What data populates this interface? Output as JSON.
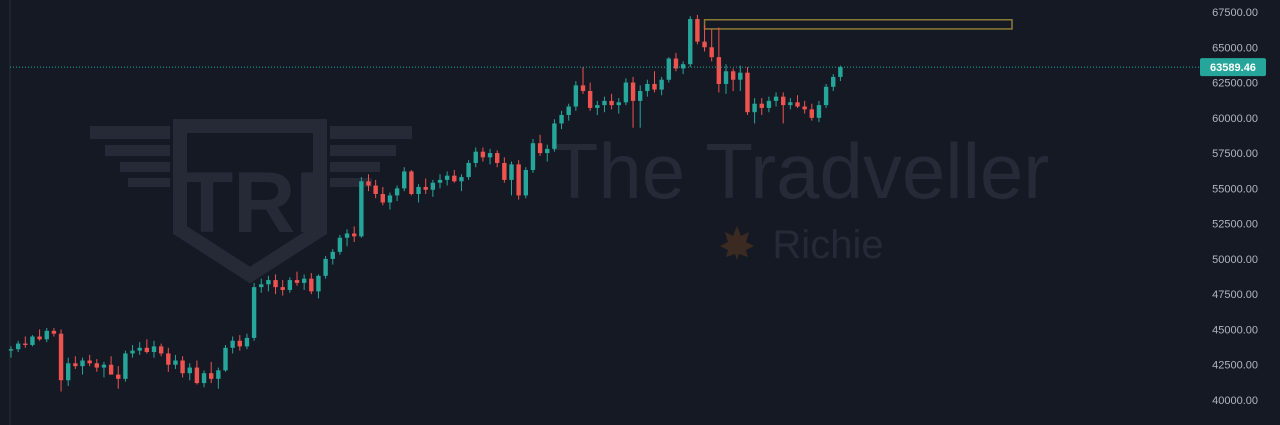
{
  "chart_data": {
    "type": "candlestick",
    "title": "",
    "xlabel": "",
    "ylabel": "",
    "ylim": [
      39000,
      68500
    ],
    "y_ticks": [
      "67500.00",
      "65000.00",
      "62500.00",
      "60000.00",
      "57500.00",
      "55000.00",
      "52500.00",
      "50000.00",
      "47500.00",
      "45000.00",
      "42500.00",
      "40000.00"
    ],
    "last_price": 63589.46,
    "last_price_label": "63589.46",
    "resistance_zone": {
      "low": 66300,
      "high": 66950,
      "from_index": 97,
      "to_index": 140
    },
    "colors": {
      "up": "#26a69a",
      "down": "#ef5350",
      "background": "#151924",
      "zone_border": "#8c7b36",
      "price_line": "#26a69a",
      "axis_text": "#b2b5be"
    },
    "candles": [
      [
        43500,
        43800,
        43000,
        43600
      ],
      [
        43600,
        44200,
        43400,
        44000
      ],
      [
        44000,
        44500,
        43700,
        43900
      ],
      [
        43900,
        44600,
        43800,
        44500
      ],
      [
        44500,
        45000,
        44200,
        44300
      ],
      [
        44300,
        45100,
        44100,
        44900
      ],
      [
        44900,
        45100,
        44500,
        44700
      ],
      [
        44700,
        45000,
        40600,
        41400
      ],
      [
        41400,
        43000,
        41000,
        42600
      ],
      [
        42600,
        43100,
        42200,
        42400
      ],
      [
        42400,
        43000,
        41800,
        42800
      ],
      [
        42800,
        43200,
        42400,
        42600
      ],
      [
        42600,
        42900,
        42000,
        42300
      ],
      [
        42300,
        42700,
        41600,
        42500
      ],
      [
        42500,
        43100,
        41900,
        41800
      ],
      [
        41800,
        42400,
        40800,
        41500
      ],
      [
        41500,
        43500,
        41300,
        43300
      ],
      [
        43300,
        43900,
        43000,
        43500
      ],
      [
        43500,
        44100,
        43200,
        43700
      ],
      [
        43700,
        44300,
        43300,
        43400
      ],
      [
        43400,
        44200,
        43000,
        43800
      ],
      [
        43800,
        44000,
        43100,
        43300
      ],
      [
        43300,
        43700,
        42000,
        42500
      ],
      [
        42500,
        43200,
        42200,
        42800
      ],
      [
        42800,
        43100,
        41600,
        41900
      ],
      [
        41900,
        42600,
        41400,
        42300
      ],
      [
        42300,
        42800,
        41100,
        41200
      ],
      [
        41200,
        42100,
        40900,
        41900
      ],
      [
        41900,
        42700,
        41200,
        41500
      ],
      [
        41500,
        42300,
        40800,
        42100
      ],
      [
        42100,
        43900,
        42000,
        43700
      ],
      [
        43700,
        44500,
        43300,
        44200
      ],
      [
        44200,
        44600,
        43500,
        43800
      ],
      [
        43800,
        44700,
        43600,
        44400
      ],
      [
        44400,
        48300,
        44200,
        48000
      ],
      [
        48000,
        48600,
        47600,
        48200
      ],
      [
        48200,
        48800,
        47700,
        48500
      ],
      [
        48500,
        48900,
        47500,
        48000
      ],
      [
        48000,
        48500,
        47400,
        47800
      ],
      [
        47800,
        48700,
        47600,
        48500
      ],
      [
        48500,
        49100,
        48100,
        48300
      ],
      [
        48300,
        48900,
        47800,
        48600
      ],
      [
        48600,
        49000,
        47500,
        47700
      ],
      [
        47700,
        48900,
        47200,
        48800
      ],
      [
        48800,
        50200,
        48600,
        50000
      ],
      [
        50000,
        50700,
        49600,
        50500
      ],
      [
        50500,
        51700,
        50300,
        51500
      ],
      [
        51500,
        52100,
        50900,
        51800
      ],
      [
        51800,
        52300,
        51200,
        51600
      ],
      [
        51600,
        55800,
        51500,
        55500
      ],
      [
        55500,
        56000,
        54800,
        55200
      ],
      [
        55200,
        55600,
        54300,
        54600
      ],
      [
        54600,
        55100,
        53800,
        54000
      ],
      [
        54000,
        54700,
        53500,
        54500
      ],
      [
        54500,
        55200,
        54100,
        55000
      ],
      [
        55000,
        56500,
        54800,
        56200
      ],
      [
        56200,
        56300,
        54500,
        54600
      ],
      [
        54600,
        55300,
        54000,
        55100
      ],
      [
        55100,
        55700,
        54600,
        54900
      ],
      [
        54900,
        55600,
        54400,
        55400
      ],
      [
        55400,
        56000,
        55000,
        55600
      ],
      [
        55600,
        56200,
        55200,
        55900
      ],
      [
        55900,
        56300,
        55400,
        55500
      ],
      [
        55500,
        56000,
        54800,
        55800
      ],
      [
        55800,
        57000,
        55600,
        56800
      ],
      [
        56800,
        57900,
        56500,
        57600
      ],
      [
        57600,
        57900,
        56900,
        57200
      ],
      [
        57200,
        57800,
        56700,
        57500
      ],
      [
        57500,
        57700,
        56500,
        56800
      ],
      [
        56800,
        57200,
        55400,
        55600
      ],
      [
        55600,
        56900,
        54500,
        56700
      ],
      [
        56700,
        57000,
        54200,
        54500
      ],
      [
        54500,
        56500,
        54300,
        56300
      ],
      [
        56300,
        58500,
        56100,
        58200
      ],
      [
        58200,
        58800,
        57300,
        57500
      ],
      [
        57500,
        58100,
        56900,
        57800
      ],
      [
        57800,
        59900,
        57600,
        59600
      ],
      [
        59600,
        60500,
        59200,
        60200
      ],
      [
        60200,
        61000,
        59800,
        60800
      ],
      [
        60800,
        62600,
        60500,
        62300
      ],
      [
        62300,
        63600,
        61700,
        61900
      ],
      [
        61900,
        62500,
        60500,
        60700
      ],
      [
        60700,
        61200,
        60200,
        60900
      ],
      [
        60900,
        61500,
        60400,
        61200
      ],
      [
        61200,
        61700,
        60600,
        60900
      ],
      [
        60900,
        61400,
        60300,
        61100
      ],
      [
        61100,
        62800,
        60900,
        62500
      ],
      [
        62500,
        62900,
        59300,
        61200
      ],
      [
        61200,
        62300,
        59300,
        61900
      ],
      [
        61900,
        62700,
        61500,
        62400
      ],
      [
        62400,
        63300,
        61800,
        62000
      ],
      [
        62000,
        62900,
        61600,
        62700
      ],
      [
        62700,
        64300,
        62500,
        64200
      ],
      [
        64200,
        64600,
        63300,
        63500
      ],
      [
        63500,
        64000,
        63100,
        63800
      ],
      [
        63800,
        67200,
        63600,
        67000
      ],
      [
        67000,
        67300,
        65200,
        65400
      ],
      [
        65400,
        66600,
        64700,
        65000
      ],
      [
        65000,
        66300,
        64000,
        64300
      ],
      [
        64300,
        66400,
        61800,
        62400
      ],
      [
        62400,
        63800,
        61700,
        63300
      ],
      [
        63300,
        63500,
        61900,
        62700
      ],
      [
        62700,
        63700,
        61900,
        63200
      ],
      [
        63200,
        63600,
        60200,
        60400
      ],
      [
        60400,
        61400,
        59600,
        61000
      ],
      [
        61000,
        61400,
        60200,
        60700
      ],
      [
        60700,
        61500,
        60400,
        61200
      ],
      [
        61200,
        61800,
        60800,
        61500
      ],
      [
        61500,
        61800,
        59600,
        60900
      ],
      [
        60900,
        61400,
        60600,
        61100
      ],
      [
        61100,
        61600,
        60700,
        60800
      ],
      [
        60800,
        61200,
        60300,
        60600
      ],
      [
        60600,
        61000,
        59800,
        60000
      ],
      [
        60000,
        61200,
        59700,
        60900
      ],
      [
        60900,
        62400,
        60700,
        62200
      ],
      [
        62200,
        63100,
        61900,
        62900
      ],
      [
        62900,
        63700,
        62600,
        63589.46
      ]
    ]
  },
  "watermark": {
    "logo_letters": "TRI",
    "brand_name": "The Tradveller",
    "sub_name": "Richie"
  }
}
